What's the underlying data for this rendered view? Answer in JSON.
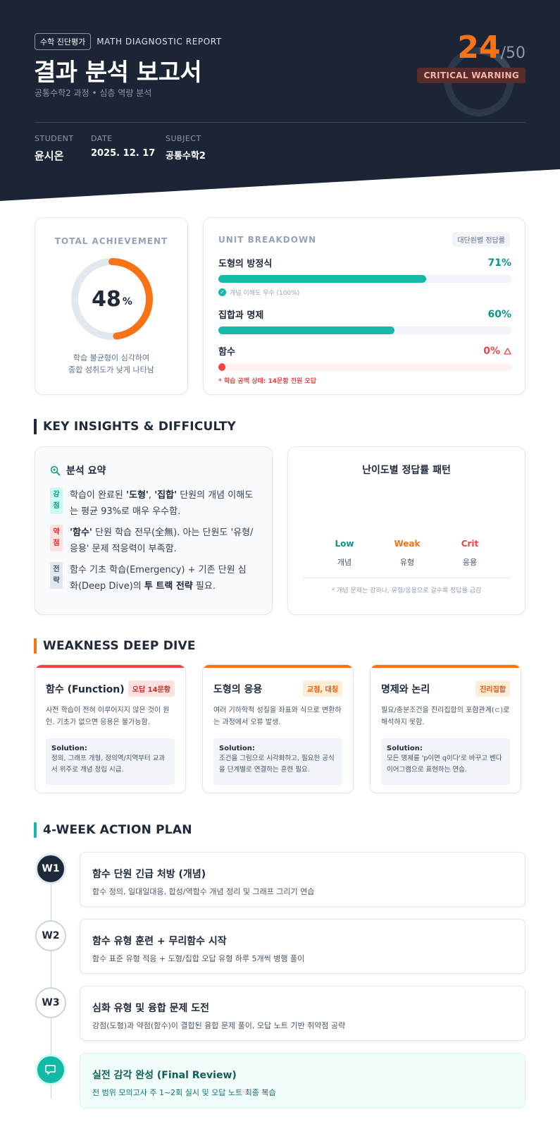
{
  "header": {
    "tag": "수학 진단평가",
    "tag_en": "MATH DIAGNOSTIC REPORT",
    "title": "결과 분석 보고서",
    "subtitle": "공통수학2 과정 • 심층 역량 분석",
    "score": "24",
    "score_total": "/50",
    "warning": "CRITICAL WARNING",
    "meta": [
      {
        "label": "STUDENT",
        "value": "윤시온"
      },
      {
        "label": "DATE",
        "value": "2025. 12. 17"
      },
      {
        "label": "SUBJECT",
        "value": "공통수학2"
      }
    ]
  },
  "achievement": {
    "label": "TOTAL ACHIEVEMENT",
    "value": "48",
    "unit": "%",
    "fraction": 0.48,
    "note_line1": "학습 불균형이 심각하여",
    "note_line2": "종합 성취도가 낮게 나타남"
  },
  "units": {
    "label": "UNIT BREAKDOWN",
    "badge": "대단원별 정답률",
    "items": [
      {
        "name": "도형의 방정식",
        "pct": "71%",
        "value": 71,
        "color": "#14b8a6",
        "note": "개념 이해도 우수 (100%)"
      },
      {
        "name": "집합과 명제",
        "pct": "60%",
        "value": 60,
        "color": "#14b8a6"
      },
      {
        "name": "함수",
        "pct": "0%",
        "value": 0,
        "color": "#ef4444",
        "alert": "* 학습 공백 상태: 14문항 전원 오답"
      }
    ]
  },
  "insights": {
    "section_title": "KEY INSIGHTS & DIFFICULTY",
    "title": "분석 요약",
    "items": [
      {
        "badge1": "강",
        "badge2": "점",
        "pre": "학습이 완료된 ",
        "b1": "'도형'",
        "mid": ", ",
        "b2": "'집합'",
        "post": " 단원의 개념 이해도는 평균 93%로 매우 우수함."
      },
      {
        "badge1": "약",
        "badge2": "점",
        "pre": "",
        "b1": "'함수'",
        "mid": " 단원 학습 전무(全無). 아는 단원도 '유형/응용' 문제 적응력이 부족함.",
        "b2": "",
        "post": ""
      },
      {
        "badge1": "전",
        "badge2": "략",
        "pre": "함수 기초 학습(Emergency) + 기존 단원 심화(Deep Dive)의 ",
        "b1": "투 트랙 전략",
        "mid": " 필요.",
        "b2": "",
        "post": ""
      }
    ],
    "difficulty": {
      "title": "난이도별 정답률 패턴",
      "levels": [
        {
          "level": "Low",
          "type": "개념",
          "color": "#0d9488"
        },
        {
          "level": "Weak",
          "type": "유형",
          "color": "#f97316"
        },
        {
          "level": "Crit",
          "type": "응용",
          "color": "#ef4444"
        }
      ],
      "note": "* 개념 문제는 강하나, 유형/응용으로 갈수록 정답률 급감"
    }
  },
  "weakness": {
    "section_title": "WEAKNESS DEEP DIVE",
    "cards": [
      {
        "name": "함수 (Function)",
        "tag": "오답 14문항",
        "color": "#ef4444",
        "tag_bg": "#fee2e2",
        "tag_color": "#dc2626",
        "desc": "사전 학습이 전혀 이루어지지 않은 것이 원인. 기초가 없으면 응용은 불가능함.",
        "solution_label": "Solution:",
        "solution": "정의, 그래프 개형, 정의역/치역부터 교과서 위주로 개념 정립 시급."
      },
      {
        "name": "도형의 응용",
        "tag": "교점, 대칭",
        "color": "#f97316",
        "tag_bg": "#ffedd5",
        "tag_color": "#ea580c",
        "desc": "여러 기하학적 성질을 좌표와 식으로 변환하는 과정에서 오류 발생.",
        "solution_label": "Solution:",
        "solution": "조건을 그림으로 시각화하고, 필요한 공식을 단계별로 연결하는 훈련 필요."
      },
      {
        "name": "명제와 논리",
        "tag": "진리집합",
        "color": "#f97316",
        "tag_bg": "#ffedd5",
        "tag_color": "#ea580c",
        "desc": "필요/충분조건을 진리집합의 포함관계(⊂)로 해석하지 못함.",
        "solution_label": "Solution:",
        "solution": "모든 명제를 'p이면 q이다'로 바꾸고 벤다이어그램으로 표현하는 연습."
      }
    ]
  },
  "plan": {
    "section_title": "4-WEEK ACTION PLAN",
    "weeks": [
      {
        "label": "W1",
        "title": "함수 단원 긴급 처방 (개념)",
        "desc": "함수 정의, 일대일대응, 합성/역함수 개념 정리 및 그래프 그리기 연습"
      },
      {
        "label": "W2",
        "title": "함수 유형 훈련 + 무리함수 시작",
        "desc": "함수 표준 유형 적응 + 도형/집합 오답 유형 하루 5개씩 병행 풀이"
      },
      {
        "label": "W3",
        "title": "심화 유형 및 융합 문제 도전",
        "desc": "강점(도형)과 약점(함수)이 결합된 융합 문제 풀이, 오답 노트 기반 취약점 공략"
      },
      {
        "label": "",
        "icon": "flag-icon",
        "title": "실전 감각 완성 (Final Review)",
        "desc": "전 범위 모의고사 주 1~2회 실시 및 오답 노트 최종 복습"
      }
    ]
  }
}
